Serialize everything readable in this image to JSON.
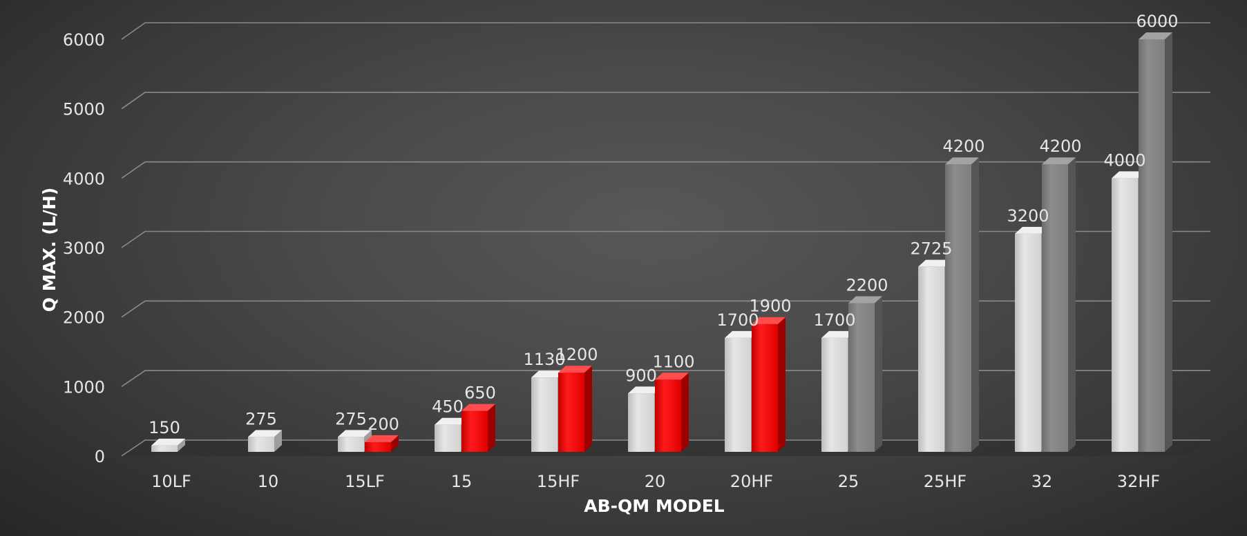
{
  "chart_data": {
    "type": "bar",
    "title": "",
    "xlabel": "AB-QM MODEL",
    "ylabel": "Q MAX. (L/H)",
    "ylim": [
      0,
      6000
    ],
    "yticks": [
      0,
      1000,
      2000,
      3000,
      4000,
      5000,
      6000
    ],
    "grid": true,
    "categories": [
      "10LF",
      "10",
      "15LF",
      "15",
      "15HF",
      "20",
      "20HF",
      "25",
      "25HF",
      "32",
      "32HF"
    ],
    "series": [
      {
        "values": [
          150,
          275,
          275,
          450,
          1130,
          900,
          1700,
          1700,
          2725,
          3200,
          4000
        ],
        "color": "#d9d9d9"
      },
      {
        "values": [
          null,
          null,
          200,
          650,
          1200,
          1100,
          1900,
          2200,
          4200,
          4200,
          6000
        ],
        "colors": [
          null,
          null,
          "#ff0000",
          "#ff0000",
          "#ff0000",
          "#ff0000",
          "#ff0000",
          "#808080",
          "#808080",
          "#808080",
          "#808080"
        ]
      }
    ]
  }
}
